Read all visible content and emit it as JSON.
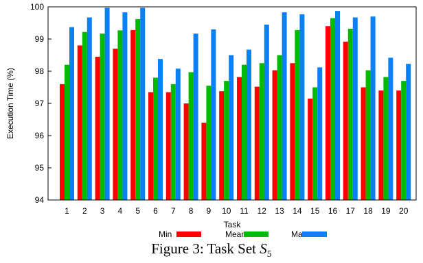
{
  "chart_data": {
    "type": "bar",
    "title": "",
    "xlabel": "Task",
    "ylabel": "Execution Time (%)",
    "ylim": [
      94,
      100
    ],
    "yticks": [
      94,
      95,
      96,
      97,
      98,
      99,
      100
    ],
    "categories": [
      "1",
      "2",
      "3",
      "4",
      "5",
      "6",
      "7",
      "8",
      "9",
      "10",
      "11",
      "12",
      "13",
      "14",
      "15",
      "16",
      "17",
      "18",
      "19",
      "20"
    ],
    "series": [
      {
        "name": "Min",
        "color": "#ff0000",
        "values": [
          97.6,
          98.8,
          98.45,
          98.7,
          99.28,
          97.35,
          97.35,
          97.0,
          96.4,
          97.38,
          97.82,
          97.52,
          98.03,
          98.25,
          97.15,
          99.4,
          98.92,
          97.5,
          97.4,
          97.4
        ]
      },
      {
        "name": "Mean",
        "color": "#00bb00",
        "values": [
          98.2,
          99.22,
          99.17,
          99.27,
          99.62,
          97.8,
          97.6,
          97.97,
          97.55,
          97.7,
          98.2,
          98.25,
          98.5,
          99.28,
          97.5,
          99.65,
          99.32,
          98.03,
          97.82,
          97.7
        ]
      },
      {
        "name": "Max",
        "color": "#0b80f5",
        "values": [
          99.37,
          99.67,
          99.97,
          99.83,
          99.97,
          98.38,
          98.08,
          99.17,
          99.3,
          98.5,
          98.67,
          99.45,
          99.83,
          99.77,
          98.12,
          99.87,
          99.67,
          99.7,
          98.42,
          98.23
        ]
      }
    ],
    "legend_position": "bottom-center",
    "grid": false
  },
  "caption": {
    "prefix": "Figure 3:  Task Set ",
    "symbol": "S",
    "subscript": "5"
  }
}
